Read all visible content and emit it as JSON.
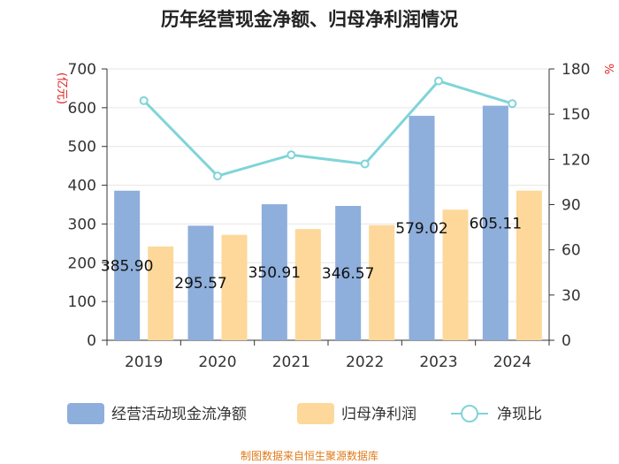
{
  "chart_data": {
    "type": "bar",
    "title": "历年经营现金净额、归母净利润情况",
    "categories": [
      "2019",
      "2020",
      "2021",
      "2022",
      "2023",
      "2024"
    ],
    "series": [
      {
        "name": "经营活动现金流净额",
        "axis": "left",
        "color": "#8eaedb",
        "values": [
          385.9,
          295.57,
          350.91,
          346.57,
          579.02,
          605.11
        ],
        "labels": [
          "385.90",
          "295.57",
          "350.91",
          "346.57",
          "579.02",
          "605.11"
        ]
      },
      {
        "name": "归母净利润",
        "axis": "left",
        "color": "#fdd89a",
        "values": [
          242,
          272,
          287,
          297,
          337,
          386
        ]
      },
      {
        "name": "净现比",
        "axis": "right",
        "type": "line",
        "color": "#80d4d8",
        "values": [
          159,
          109,
          123,
          117,
          172,
          157
        ]
      }
    ],
    "left_axis": {
      "label": "(亿元)",
      "ylim": [
        0,
        700
      ],
      "ticks": [
        0,
        100,
        200,
        300,
        400,
        500,
        600,
        700
      ]
    },
    "right_axis": {
      "label": "%",
      "ylim": [
        0,
        180
      ],
      "ticks": [
        0,
        30,
        60,
        90,
        120,
        150,
        180
      ]
    },
    "legend_position": "bottom",
    "grid": true
  },
  "footer": {
    "source": "制图数据来自恒生聚源数据库"
  }
}
